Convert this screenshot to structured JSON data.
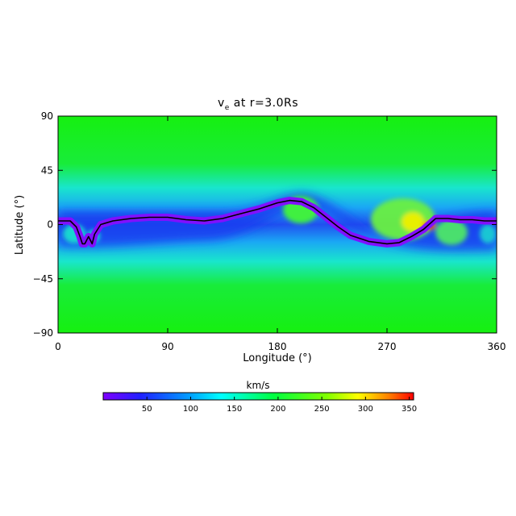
{
  "chart_data": {
    "type": "heatmap",
    "title_main": "v",
    "title_sub": "e",
    "title_rest": " at r=3.0Rs",
    "xlabel": "Longitude (°)",
    "ylabel": "Latitude (°)",
    "xlim": [
      0,
      360
    ],
    "ylim": [
      -90,
      90
    ],
    "xticks": [
      0,
      90,
      180,
      270,
      360
    ],
    "yticks": [
      -90,
      -45,
      0,
      45,
      90
    ],
    "x_tick_labels": [
      "0",
      "90",
      "180",
      "270",
      "360"
    ],
    "y_tick_labels": [
      "−90",
      "−45",
      "0",
      "45",
      "90"
    ],
    "colorbar": {
      "label": "km/s",
      "range": [
        0,
        355
      ],
      "ticks": [
        50,
        100,
        150,
        200,
        250,
        300,
        350
      ],
      "tick_labels": [
        "50",
        "100",
        "150",
        "200",
        "250",
        "300",
        "350"
      ],
      "colormap": "rainbow (purple-blue-cyan-green-yellow-red)"
    },
    "neutral_line": {
      "color": "#000000",
      "lon": [
        0,
        10,
        15,
        18,
        20,
        22,
        25,
        28,
        30,
        35,
        45,
        60,
        75,
        90,
        105,
        120,
        135,
        150,
        165,
        180,
        190,
        200,
        210,
        220,
        230,
        240,
        255,
        270,
        280,
        290,
        300,
        310,
        320,
        330,
        340,
        350,
        360
      ],
      "lat": [
        3,
        3,
        -2,
        -10,
        -16,
        -16,
        -10,
        -16,
        -8,
        0,
        3,
        5,
        6,
        6,
        4,
        3,
        5,
        9,
        13,
        18,
        20,
        19,
        14,
        6,
        -2,
        -9,
        -14,
        -16,
        -15,
        -10,
        -4,
        5,
        5,
        4,
        4,
        3,
        3
      ]
    },
    "features": [
      {
        "lon": 200,
        "lat": 13,
        "peak": 215
      },
      {
        "lon": 290,
        "lat": 2,
        "peak": 270
      },
      {
        "lon": 300,
        "lat": -2,
        "peak": 350
      }
    ]
  }
}
